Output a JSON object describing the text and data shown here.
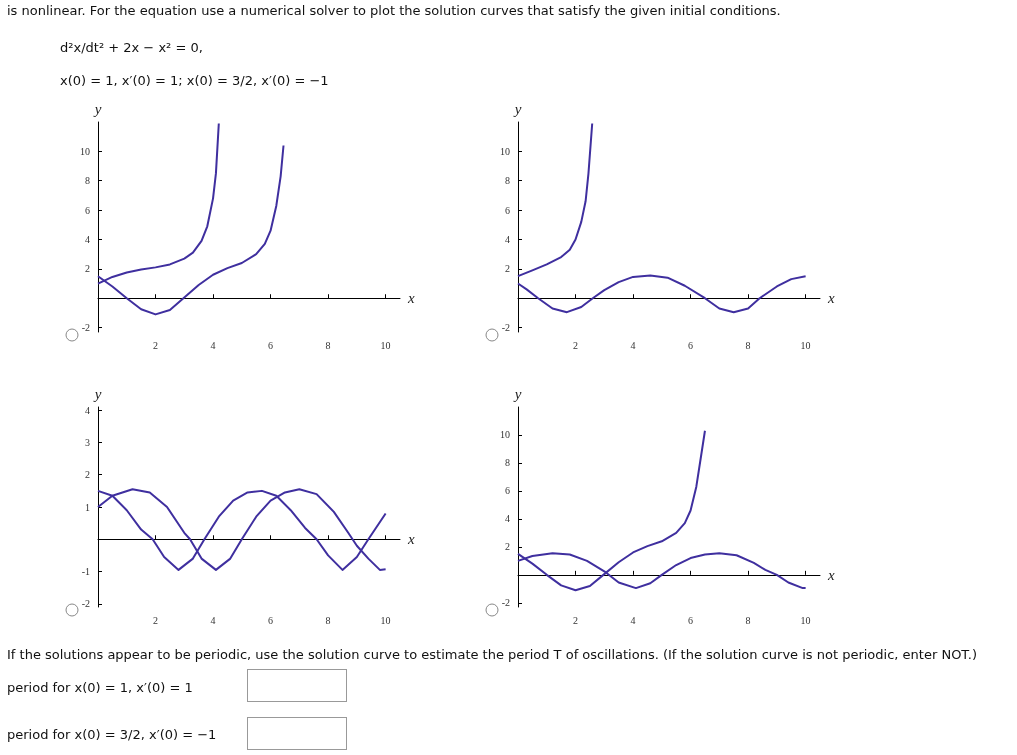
{
  "chart_data": [
    {
      "type": "line",
      "title": "is nonlinear. For the equation use a numerical solver to plot the solution curves that satisfy the given initial conditions.",
      "annotations": [
        "d²x/dt² + 2x − x² = 0,",
        "x(0) = 1, x′(0) = 1;   x(0) = 3/2, x′(0) = −1"
      ],
      "xlabel": "x",
      "ylabel": "y",
      "xlim": [
        0,
        10.5
      ],
      "ylim": [
        -2.3,
        12
      ],
      "xticks": [
        2,
        4,
        6,
        8,
        10
      ],
      "yticks": [
        -2,
        2,
        4,
        6,
        8,
        10
      ],
      "marker": "none",
      "line_style": "solid",
      "series": [
        {
          "color": "#3f2f9f",
          "x": [
            0,
            0.5,
            1,
            1.5,
            2,
            2.5,
            3,
            3.3,
            3.6,
            3.8,
            4,
            4.1,
            4.2
          ],
          "values": [
            1,
            1.45,
            1.75,
            1.95,
            2.1,
            2.3,
            2.7,
            3.1,
            3.9,
            4.9,
            6.8,
            8.5,
            11.9
          ]
        },
        {
          "color": "#3f2f9f",
          "x": [
            0,
            0.5,
            1,
            1.5,
            2,
            2.5,
            3,
            3.5,
            4,
            4.5,
            5,
            5.5,
            5.8,
            6,
            6.2,
            6.35,
            6.45
          ],
          "values": [
            1.5,
            0.8,
            0,
            -0.75,
            -1.1,
            -0.8,
            0.05,
            0.9,
            1.6,
            2.05,
            2.4,
            3,
            3.7,
            4.6,
            6.3,
            8.3,
            10.4
          ]
        }
      ]
    },
    {
      "type": "line",
      "xlabel": "x",
      "ylabel": "y",
      "xlim": [
        0,
        10.5
      ],
      "ylim": [
        -2.3,
        12
      ],
      "xticks": [
        2,
        4,
        6,
        8,
        10
      ],
      "yticks": [
        -2,
        2,
        4,
        6,
        8,
        10
      ],
      "marker": "none",
      "line_style": "solid",
      "series": [
        {
          "color": "#3f2f9f",
          "x": [
            0,
            0.5,
            1,
            1.5,
            1.8,
            2,
            2.2,
            2.35,
            2.45,
            2.58
          ],
          "values": [
            1.5,
            1.9,
            2.3,
            2.8,
            3.3,
            4,
            5.2,
            6.6,
            8.5,
            11.9
          ]
        },
        {
          "color": "#3f2f9f",
          "x": [
            0,
            0.3,
            0.7,
            1.2,
            1.7,
            2.2,
            2.6,
            3,
            3.5,
            4,
            4.6,
            5.2,
            5.8,
            6.5,
            7,
            7.5,
            8,
            8.4,
            9,
            9.5,
            10
          ],
          "values": [
            1,
            0.6,
            0,
            -0.7,
            -0.95,
            -0.6,
            0,
            0.55,
            1.1,
            1.45,
            1.55,
            1.4,
            0.85,
            0,
            -0.7,
            -0.95,
            -0.7,
            0,
            0.8,
            1.3,
            1.5
          ]
        }
      ]
    },
    {
      "type": "line",
      "xlabel": "x",
      "ylabel": "y",
      "xlim": [
        0,
        10.5
      ],
      "ylim": [
        -2.1,
        4.1
      ],
      "xticks": [
        2,
        4,
        6,
        8,
        10
      ],
      "yticks": [
        -2,
        -1,
        1,
        2,
        3,
        4
      ],
      "marker": "none",
      "line_style": "solid",
      "series": [
        {
          "color": "#3f2f9f",
          "x": [
            0,
            0.5,
            1,
            1.5,
            1.9,
            2.3,
            2.8,
            3.3,
            3.7,
            4.2,
            4.7,
            5.2,
            5.7,
            6.2,
            6.7,
            7.2,
            7.6,
            8,
            8.5,
            9,
            9.4,
            10
          ],
          "values": [
            1.5,
            1.35,
            0.9,
            0.3,
            0,
            -0.55,
            -0.95,
            -0.6,
            0,
            0.7,
            1.2,
            1.45,
            1.5,
            1.35,
            0.9,
            0.35,
            0,
            -0.5,
            -0.95,
            -0.55,
            0,
            0.8
          ]
        },
        {
          "color": "#3f2f9f",
          "x": [
            0,
            0.5,
            1.2,
            1.8,
            2.4,
            3,
            3.2,
            3.6,
            4.1,
            4.6,
            5,
            5.5,
            6,
            6.5,
            7,
            7.6,
            8.2,
            8.7,
            9,
            9.4,
            9.8,
            10
          ],
          "values": [
            1,
            1.35,
            1.55,
            1.45,
            1,
            0.2,
            0,
            -0.6,
            -0.95,
            -0.6,
            0,
            0.7,
            1.2,
            1.45,
            1.55,
            1.4,
            0.85,
            0.2,
            -0.2,
            -0.6,
            -0.95,
            -0.93
          ]
        }
      ]
    },
    {
      "type": "line",
      "annotations": [
        "If the solutions appear to be periodic, use the solution curve to estimate the period T of oscillations. (If the solution curve is not periodic, enter NOT.)",
        "period for  x(0) = 1, x′(0) = 1",
        "period for  x(0) = 3/2, x′(0) = −1"
      ],
      "xlabel": "x",
      "ylabel": "y",
      "xlim": [
        0,
        10.5
      ],
      "ylim": [
        -2.3,
        12
      ],
      "xticks": [
        2,
        4,
        6,
        8,
        10
      ],
      "yticks": [
        -2,
        2,
        4,
        6,
        8,
        10
      ],
      "marker": "none",
      "line_style": "solid",
      "series": [
        {
          "color": "#3f2f9f",
          "x": [
            0,
            0.5,
            1.2,
            1.8,
            2.4,
            3,
            3.5,
            4.1,
            4.6,
            5,
            5.5,
            6,
            6.5,
            7,
            7.6,
            8.2,
            8.6,
            9,
            9.4,
            9.9,
            10
          ],
          "values": [
            1,
            1.35,
            1.55,
            1.45,
            1,
            0.25,
            -0.55,
            -0.95,
            -0.6,
            0,
            0.7,
            1.2,
            1.45,
            1.55,
            1.4,
            0.85,
            0.35,
            0,
            -0.55,
            -0.95,
            -0.95
          ]
        },
        {
          "color": "#3f2f9f",
          "x": [
            0,
            0.5,
            1,
            1.5,
            2,
            2.5,
            3,
            3.5,
            4,
            4.5,
            5,
            5.5,
            5.8,
            6,
            6.2,
            6.35,
            6.5
          ],
          "values": [
            1.5,
            0.8,
            0,
            -0.75,
            -1.1,
            -0.8,
            0.05,
            0.9,
            1.6,
            2.05,
            2.4,
            3,
            3.7,
            4.6,
            6.3,
            8.3,
            10.3
          ]
        }
      ]
    }
  ]
}
